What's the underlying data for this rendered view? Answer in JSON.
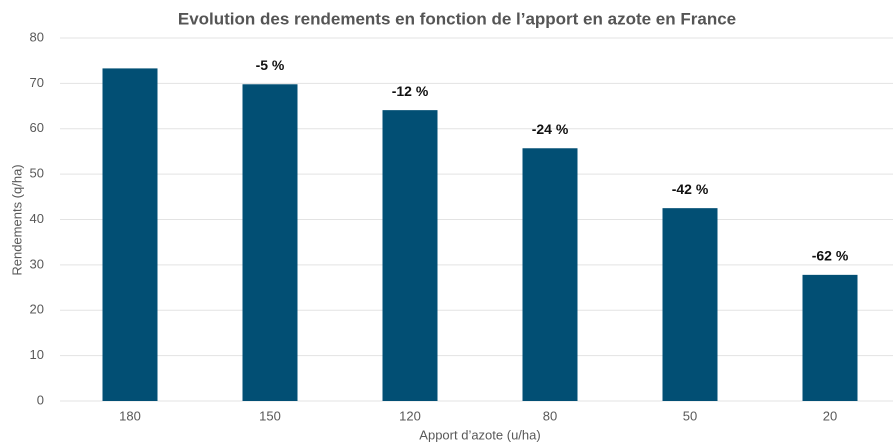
{
  "chart_data": {
    "type": "bar",
    "title": "Evolution des rendements en fonction de l’apport en azote en France",
    "x_label": "Apport d’azote (u/ha)",
    "y_label": "Rendements (q/ha)",
    "categories": [
      "180",
      "150",
      "120",
      "80",
      "50",
      "20"
    ],
    "values": [
      73.3,
      69.8,
      64.1,
      55.7,
      42.5,
      27.8
    ],
    "annotations": [
      null,
      "-5 %",
      "-12 %",
      "-24 %",
      "-42 %",
      "-62 %"
    ],
    "color": "#024f74",
    "ylim": [
      0,
      80
    ],
    "yticks": [
      0,
      10,
      20,
      30,
      40,
      50,
      60,
      70,
      80
    ],
    "grid": true
  }
}
